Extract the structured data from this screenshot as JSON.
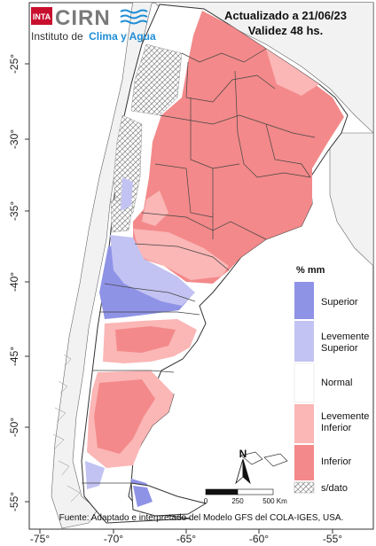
{
  "header": {
    "logo_org": "INTA",
    "logo_brand": "CIRN",
    "institute_prefix": "Instituto de",
    "institute_highlight": "Clima y Agua",
    "updated": "Actualizado a 21/06/23",
    "validity": "Validez 48 hs."
  },
  "map": {
    "lat_ticks": [
      "-25°",
      "-30°",
      "-35°",
      "-40°",
      "-45°",
      "-50°",
      "-55°"
    ],
    "lon_ticks": [
      "-75°",
      "-70°",
      "-65°",
      "-60°",
      "-55°"
    ],
    "source_note": "Fuente: Adaptado e interpretado del Modelo GFS del COLA-IGES, USA."
  },
  "legend": {
    "unit": "% mm",
    "categories": [
      {
        "label_lines": [
          "Superior"
        ],
        "color": "#8f93e6"
      },
      {
        "label_lines": [
          "Levemente",
          "Superior"
        ],
        "color": "#c2c3f2"
      },
      {
        "label_lines": [
          "Normal"
        ],
        "color": "#ffffff"
      },
      {
        "label_lines": [
          "Levemente",
          "Inferior"
        ],
        "color": "#fbb6b6"
      },
      {
        "label_lines": [
          "Inferior"
        ],
        "color": "#f3898a"
      }
    ],
    "nodata_label": "s/dato"
  },
  "scale": {
    "labels": [
      "0",
      "250",
      "500 Km"
    ],
    "north_label": "N"
  },
  "colors": {
    "inferior": "#f3898a",
    "lev_inferior": "#fbb6b6",
    "superior": "#8f93e6",
    "lev_superior": "#c2c3f2",
    "neighbor": "#f0f0f0",
    "land_gray": "#e6e6e6",
    "border": "#555555",
    "brand_blue": "#1f8dd6"
  }
}
